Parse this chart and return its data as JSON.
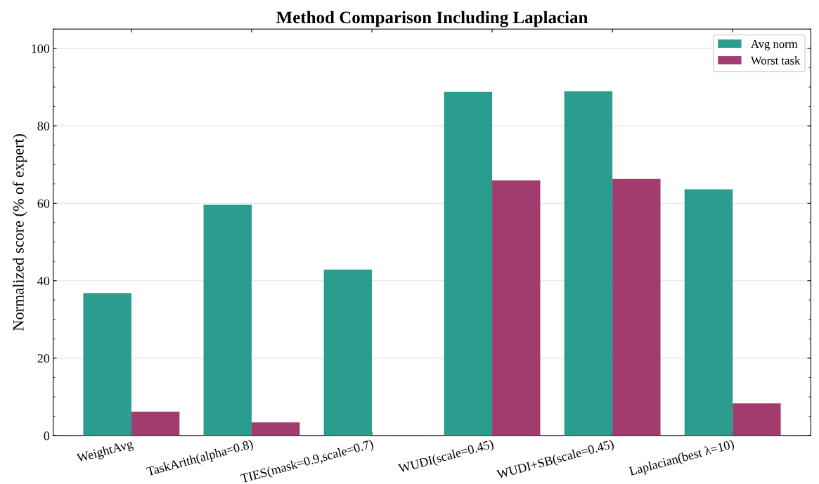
{
  "chart_data": {
    "type": "bar",
    "title": "Method Comparison Including Laplacian",
    "ylabel": "Normalized score (% of expert)",
    "categories": [
      "WeightAvg",
      "TaskArith(alpha=0.8)",
      "TIES(mask=0.9,scale=0.7)",
      "WUDI(scale=0.45)",
      "WUDI+SB(scale=0.45)",
      "Laplacian(best λ=10)"
    ],
    "series": [
      {
        "name": "Avg norm",
        "color": "#2a9d8f",
        "values": [
          36.8,
          59.6,
          42.9,
          88.8,
          88.9,
          63.6
        ]
      },
      {
        "name": "Worst task",
        "color": "#a23b6e",
        "values": [
          6.2,
          3.4,
          0,
          65.9,
          66.3,
          8.3
        ]
      }
    ],
    "ylim": [
      0,
      105
    ],
    "yticks": [
      0,
      20,
      40,
      60,
      80,
      100
    ],
    "grid": "y",
    "legend": "top right"
  }
}
